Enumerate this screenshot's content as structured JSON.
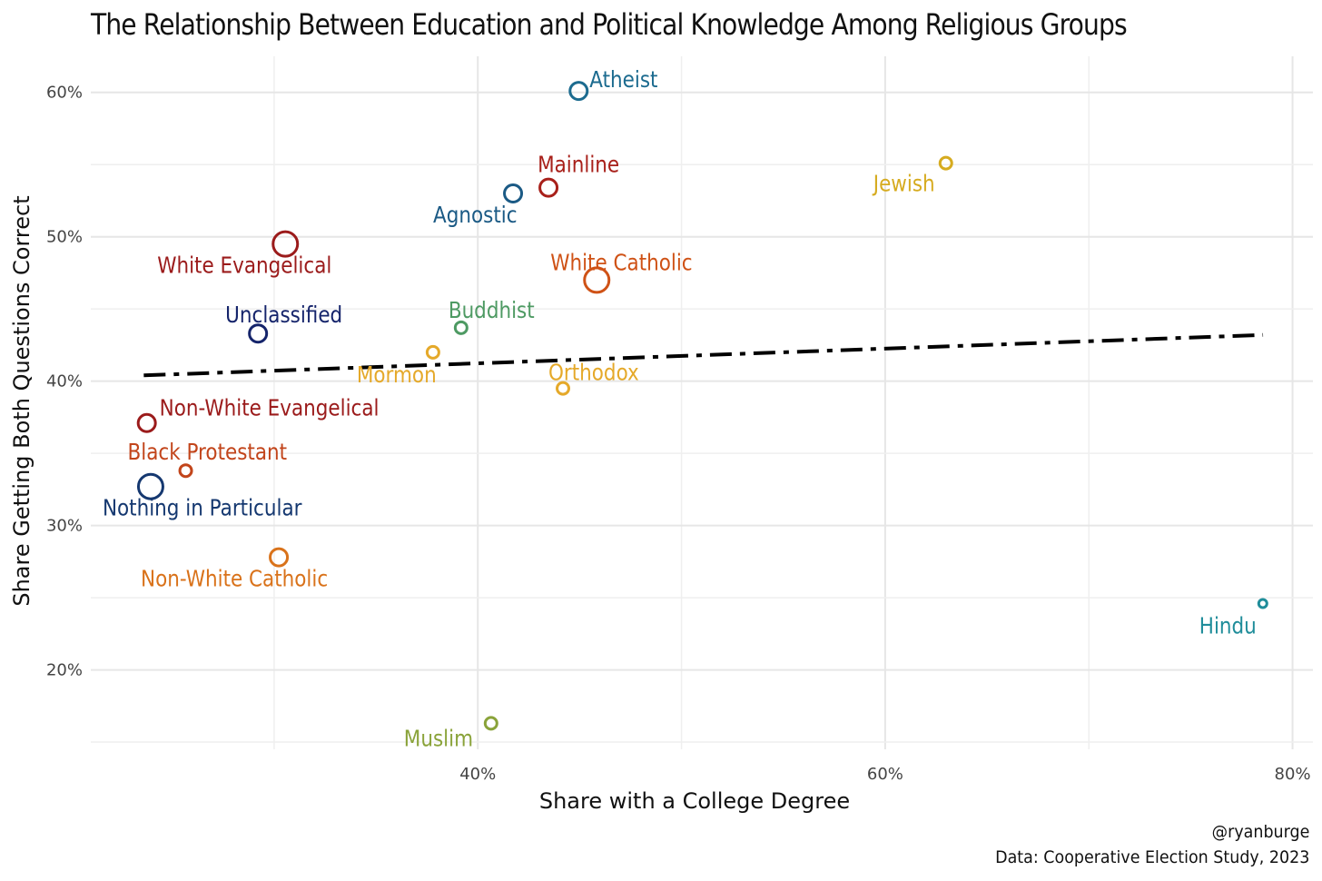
{
  "chart_data": {
    "type": "scatter",
    "title": "The Relationship Between Education and Political Knowledge Among Religious Groups",
    "xlabel": "Share with a College Degree",
    "ylabel": "Share Getting Both Questions Correct",
    "xlim": [
      0.21,
      0.81
    ],
    "ylim": [
      0.145,
      0.625
    ],
    "x_ticks": [
      0.4,
      0.6,
      0.8
    ],
    "x_tick_labels": [
      "40%",
      "60%",
      "80%"
    ],
    "y_ticks": [
      0.2,
      0.3,
      0.4,
      0.5,
      0.6
    ],
    "y_tick_labels": [
      "20%",
      "30%",
      "40%",
      "50%",
      "60%"
    ],
    "grid": true,
    "trend_line": {
      "x": [
        0.236,
        0.7855
      ],
      "y": [
        0.404,
        0.432
      ],
      "style": "dash-dot",
      "color": "#000000"
    },
    "points": [
      {
        "label": "Atheist",
        "x": 0.4495,
        "y": 0.601,
        "size": "medium",
        "color": "#1c6b8f"
      },
      {
        "label": "Mainline",
        "x": 0.4347,
        "y": 0.534,
        "size": "medium",
        "color": "#a8201a"
      },
      {
        "label": "Jewish",
        "x": 0.6298,
        "y": 0.551,
        "size": "small",
        "color": "#d6ab1f"
      },
      {
        "label": "Agnostic",
        "x": 0.4173,
        "y": 0.53,
        "size": "medium",
        "color": "#1b5a85"
      },
      {
        "label": "White Evangelical",
        "x": 0.3055,
        "y": 0.495,
        "size": "large",
        "color": "#9b1b1b"
      },
      {
        "label": "White Catholic",
        "x": 0.4584,
        "y": 0.47,
        "size": "large",
        "color": "#cf5216"
      },
      {
        "label": "Buddhist",
        "x": 0.3918,
        "y": 0.437,
        "size": "small",
        "color": "#4e9a63"
      },
      {
        "label": "Unclassified",
        "x": 0.2921,
        "y": 0.433,
        "size": "medium",
        "color": "#15246b"
      },
      {
        "label": "Mormon",
        "x": 0.378,
        "y": 0.42,
        "size": "small",
        "color": "#e5a92a"
      },
      {
        "label": "Orthodox",
        "x": 0.4418,
        "y": 0.395,
        "size": "small",
        "color": "#e5a92a"
      },
      {
        "label": "Non-White Evangelical",
        "x": 0.2375,
        "y": 0.371,
        "size": "medium",
        "color": "#9b1b1b"
      },
      {
        "label": "Black Protestant",
        "x": 0.2566,
        "y": 0.338,
        "size": "small",
        "color": "#c2451b"
      },
      {
        "label": "Nothing in Particular",
        "x": 0.2394,
        "y": 0.327,
        "size": "large",
        "color": "#153870"
      },
      {
        "label": "Non-White Catholic",
        "x": 0.3023,
        "y": 0.278,
        "size": "medium",
        "color": "#d9721a"
      },
      {
        "label": "Hindu",
        "x": 0.7854,
        "y": 0.246,
        "size": "tiny",
        "color": "#1f8d9a"
      },
      {
        "label": "Muslim",
        "x": 0.4065,
        "y": 0.163,
        "size": "small",
        "color": "#8aa33a"
      }
    ]
  },
  "caption": {
    "handle": "@ryanburge",
    "source": "Data: Cooperative Election Study, 2023"
  }
}
